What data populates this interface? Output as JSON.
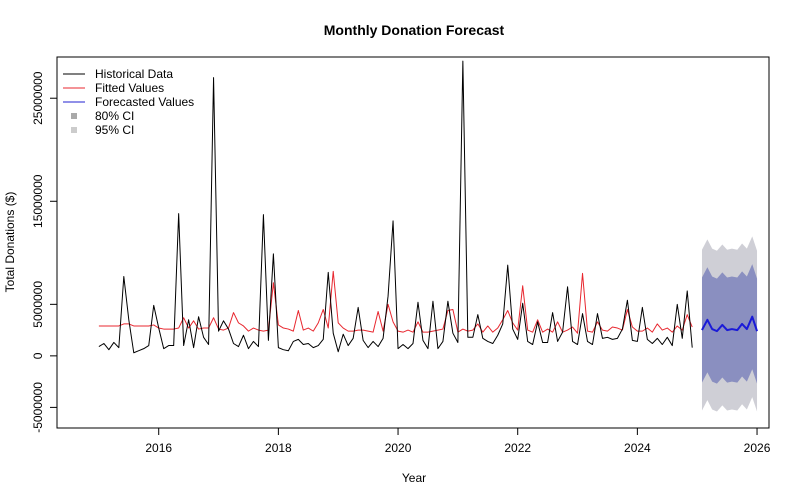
{
  "chart_data": {
    "type": "line",
    "title": "Monthly Donation Forecast",
    "xlabel": "Year",
    "ylabel": "Total Donations ($)",
    "xlim": [
      2014.3,
      2026.2
    ],
    "ylim": [
      -7000000,
      29000000
    ],
    "x_ticks": [
      2016,
      2018,
      2020,
      2022,
      2024,
      2026
    ],
    "x_tick_labels": [
      "2016",
      "2018",
      "2020",
      "2022",
      "2024",
      "2026"
    ],
    "y_ticks": [
      -5000000,
      0,
      5000000,
      15000000,
      25000000
    ],
    "y_tick_labels": [
      "-5000000",
      "0",
      "5000000",
      "15000000",
      "25000000"
    ],
    "legend": {
      "position": "top-left",
      "entries": [
        {
          "label": "Historical Data",
          "kind": "line",
          "color": "#000000"
        },
        {
          "label": "Fitted Values",
          "kind": "line",
          "color": "#e8272f"
        },
        {
          "label": "Forecasted Values",
          "kind": "line",
          "color": "#2020d0"
        },
        {
          "label": "80% CI",
          "kind": "square",
          "color": "#a9a9a9"
        },
        {
          "label": "95% CI",
          "kind": "square",
          "color": "#cccccc"
        }
      ]
    },
    "colors": {
      "historical": "#000000",
      "fitted": "#e8272f",
      "forecast": "#1a1ad8",
      "ci80": "#8a8fc0",
      "ci95": "#cfcfd6"
    },
    "series": [
      {
        "name": "Historical Data",
        "x_start": 2015.0,
        "x_step": 0.0833333,
        "values": [
          900000,
          1200000,
          600000,
          1300000,
          800000,
          7700000,
          3500000,
          300000,
          500000,
          700000,
          1000000,
          4900000,
          2700000,
          700000,
          1000000,
          1000000,
          13800000,
          1000000,
          3500000,
          800000,
          3800000,
          1800000,
          1100000,
          27000000,
          2400000,
          3400000,
          2600000,
          1200000,
          900000,
          2000000,
          700000,
          1400000,
          900000,
          13700000,
          1500000,
          9900000,
          800000,
          600000,
          500000,
          1400000,
          1600000,
          1100000,
          1200000,
          800000,
          1000000,
          1600000,
          8100000,
          2200000,
          400000,
          2100000,
          1000000,
          1700000,
          4700000,
          1500000,
          800000,
          1400000,
          900000,
          1700000,
          5800000,
          13100000,
          700000,
          1100000,
          700000,
          1200000,
          5200000,
          1500000,
          700000,
          5300000,
          700000,
          1400000,
          5300000,
          2200000,
          1300000,
          28600000,
          1800000,
          1800000,
          4000000,
          1700000,
          1400000,
          1200000,
          2000000,
          3100000,
          8800000,
          2600000,
          1600000,
          5100000,
          1400000,
          1100000,
          3300000,
          1300000,
          1300000,
          4200000,
          1400000,
          2300000,
          6700000,
          1400000,
          1100000,
          4100000,
          1400000,
          1100000,
          4100000,
          1700000,
          1800000,
          1600000,
          1700000,
          2600000,
          5400000,
          1500000,
          1400000,
          4700000,
          1600000,
          1200000,
          1700000,
          1100000,
          1800000,
          1000000,
          5000000,
          1700000,
          6300000,
          800000
        ]
      },
      {
        "name": "Fitted Values",
        "x_start": 2015.0,
        "x_step": 0.0833333,
        "values": [
          2900000,
          2900000,
          2900000,
          2900000,
          2900000,
          3100000,
          3100000,
          2900000,
          2900000,
          2900000,
          2900000,
          3000000,
          2700000,
          2600000,
          2600000,
          2600000,
          2700000,
          3700000,
          2700000,
          3400000,
          2600000,
          2700000,
          2700000,
          3700000,
          2600000,
          2500000,
          2700000,
          4200000,
          3200000,
          2900000,
          2400000,
          2700000,
          2500000,
          2400000,
          2500000,
          7100000,
          3000000,
          2700000,
          2600000,
          2400000,
          4400000,
          2500000,
          2700000,
          2400000,
          3200000,
          4500000,
          2700000,
          8200000,
          3200000,
          2700000,
          2400000,
          2400000,
          2500000,
          2500000,
          2400000,
          2300000,
          4300000,
          2400000,
          5000000,
          3300000,
          2400000,
          2300000,
          2500000,
          2300000,
          3300000,
          2300000,
          2300000,
          2400000,
          2500000,
          2600000,
          4400000,
          4500000,
          2300000,
          2600000,
          2400000,
          2500000,
          3100000,
          2300000,
          2900000,
          2300000,
          2700000,
          3500000,
          4400000,
          3200000,
          2500000,
          6800000,
          2500000,
          2300000,
          3500000,
          2300000,
          2600000,
          2300000,
          3300000,
          2300000,
          2500000,
          2800000,
          2200000,
          8000000,
          2400000,
          2300000,
          3300000,
          2500000,
          2400000,
          2800000,
          2700000,
          2500000,
          4500000,
          2800000,
          2400000,
          2400000,
          2700000,
          2300000,
          3100000,
          2500000,
          2700000,
          2300000,
          2900000,
          2500000,
          4000000,
          2800000
        ]
      },
      {
        "name": "Forecasted Values",
        "x": [
          2025.08,
          2025.17,
          2025.25,
          2025.33,
          2025.42,
          2025.5,
          2025.58,
          2025.67,
          2025.75,
          2025.83,
          2025.92,
          2026.0
        ],
        "values": [
          2500000,
          3500000,
          2600000,
          2400000,
          3000000,
          2500000,
          2600000,
          2500000,
          3100000,
          2600000,
          3800000,
          2400000
        ],
        "ci80_lower": [
          -2600000,
          -1600000,
          -2500000,
          -2700000,
          -2100000,
          -2600000,
          -2500000,
          -2600000,
          -2000000,
          -2500000,
          -1300000,
          -2700000
        ],
        "ci80_upper": [
          7600000,
          8600000,
          7700000,
          7500000,
          8100000,
          7600000,
          7700000,
          7600000,
          8200000,
          7700000,
          8900000,
          7500000
        ],
        "ci95_lower": [
          -5300000,
          -4300000,
          -5200000,
          -5400000,
          -4800000,
          -5300000,
          -5200000,
          -5300000,
          -4700000,
          -5200000,
          -4000000,
          -5400000
        ],
        "ci95_upper": [
          10300000,
          11300000,
          10400000,
          10200000,
          10800000,
          10300000,
          10400000,
          10300000,
          10900000,
          10400000,
          11600000,
          10200000
        ]
      }
    ]
  }
}
